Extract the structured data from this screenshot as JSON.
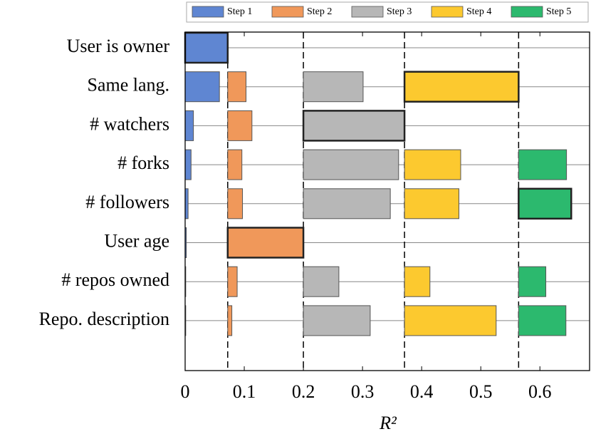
{
  "chart_data": {
    "type": "stepwise_bar",
    "x_label": "R²",
    "categories": [
      "User is owner",
      "Same lang.",
      "# watchers",
      "# forks",
      "# followers",
      "User age",
      "# repos owned",
      "Repo. description"
    ],
    "series": [
      {
        "name": "Step 1",
        "color": "#5f86d2",
        "values": [
          0.072,
          0.058,
          0.014,
          0.01,
          0.005,
          0.002,
          0.001,
          0.001
        ]
      },
      {
        "name": "Step 2",
        "color": "#f0985a",
        "values": [
          null,
          0.031,
          0.041,
          0.024,
          0.025,
          0.128,
          0.016,
          0.007
        ]
      },
      {
        "name": "Step 3",
        "color": "#b7b7b7",
        "values": [
          null,
          0.101,
          0.171,
          0.161,
          0.147,
          null,
          0.06,
          0.113
        ]
      },
      {
        "name": "Step 4",
        "color": "#fcc92f",
        "values": [
          null,
          0.193,
          null,
          0.095,
          0.092,
          null,
          0.043,
          0.155
        ]
      },
      {
        "name": "Step 5",
        "color": "#2cb96e",
        "values": [
          null,
          null,
          null,
          0.081,
          0.089,
          null,
          0.046,
          0.08
        ]
      }
    ],
    "xlim": [
      0,
      0.684
    ],
    "xticks": [
      0,
      0.1,
      0.2,
      0.3,
      0.4,
      0.5,
      0.6
    ]
  }
}
